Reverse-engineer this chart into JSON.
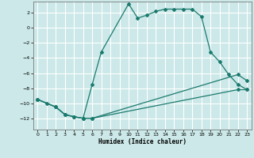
{
  "xlabel": "Humidex (Indice chaleur)",
  "xlim": [
    -0.5,
    23.5
  ],
  "ylim": [
    -13.5,
    3.5
  ],
  "xticks": [
    0,
    1,
    2,
    3,
    4,
    5,
    6,
    7,
    8,
    9,
    10,
    11,
    12,
    13,
    14,
    15,
    16,
    17,
    18,
    19,
    20,
    21,
    22,
    23
  ],
  "yticks": [
    -12,
    -10,
    -8,
    -6,
    -4,
    -2,
    0,
    2
  ],
  "bg_color": "#cce8e8",
  "line_color": "#1a7a6e",
  "grid_color": "#ffffff",
  "line1_x": [
    0,
    1,
    2,
    3,
    4,
    5,
    6,
    7,
    10,
    11,
    12,
    13,
    14,
    15,
    16,
    17,
    18,
    19,
    20,
    21,
    22,
    23
  ],
  "line1_y": [
    -9.5,
    -10.0,
    -10.5,
    -11.5,
    -11.8,
    -12.0,
    -7.5,
    -3.2,
    3.2,
    1.3,
    1.7,
    2.2,
    2.5,
    2.5,
    2.5,
    2.5,
    1.5,
    -3.2,
    -4.5,
    -6.2,
    -7.5,
    -8.2
  ],
  "line2_x": [
    0,
    2,
    3,
    4,
    5,
    6,
    22,
    23
  ],
  "line2_y": [
    -9.5,
    -10.5,
    -11.5,
    -11.8,
    -12.0,
    -12.0,
    -6.2,
    -7.0
  ],
  "line3_x": [
    0,
    2,
    3,
    4,
    5,
    6,
    22,
    23
  ],
  "line3_y": [
    -9.5,
    -10.5,
    -11.5,
    -11.8,
    -12.0,
    -12.0,
    -8.2,
    -8.2
  ]
}
